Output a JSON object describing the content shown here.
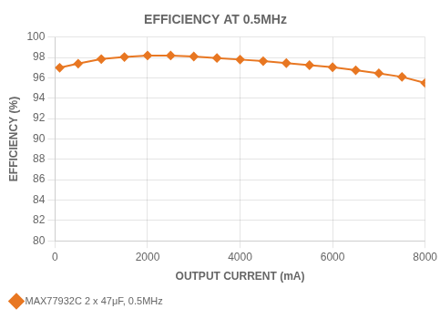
{
  "chart_data": {
    "type": "line",
    "title": "EFFICIENCY AT 0.5MHz",
    "xlabel": "OUTPUT CURRENT (mA)",
    "ylabel": "EFFICIENCY (%)",
    "x": [
      100,
      500,
      1000,
      1500,
      2000,
      2500,
      3000,
      3500,
      4000,
      4500,
      5000,
      5500,
      6000,
      6500,
      7000,
      7500,
      8000
    ],
    "series": [
      {
        "name": "MAX77932C 2 x 47μF, 0.5MHz",
        "color": "#E87722",
        "marker": "diamond",
        "values": [
          97.0,
          97.4,
          97.85,
          98.05,
          98.2,
          98.2,
          98.1,
          97.95,
          97.8,
          97.65,
          97.45,
          97.25,
          97.05,
          96.75,
          96.45,
          96.1,
          95.5
        ]
      }
    ],
    "xlim": [
      0,
      8000
    ],
    "ylim": [
      80,
      100
    ],
    "xticks": [
      0,
      2000,
      4000,
      6000,
      8000
    ],
    "yticks": [
      80,
      82,
      84,
      86,
      88,
      90,
      92,
      94,
      96,
      98,
      100
    ],
    "grid": true,
    "legend": "lower left"
  }
}
